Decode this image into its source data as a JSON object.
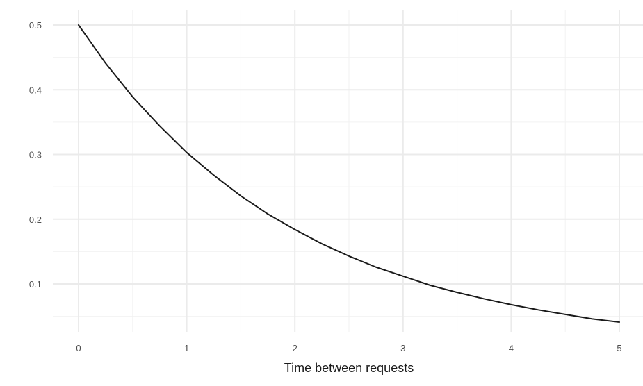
{
  "chart_data": {
    "type": "line",
    "xlabel": "Time between requests",
    "ylabel": "",
    "title": "",
    "xlim": [
      0,
      5
    ],
    "ylim": [
      0.04,
      0.5
    ],
    "x_ticks": [
      0,
      1,
      2,
      3,
      4,
      5
    ],
    "x_tick_labels": [
      "0",
      "1",
      "2",
      "3",
      "4",
      "5"
    ],
    "x_minor_ticks": [
      0.5,
      1.5,
      2.5,
      3.5,
      4.5
    ],
    "y_ticks": [
      0.1,
      0.2,
      0.3,
      0.4,
      0.5
    ],
    "y_tick_labels": [
      "0.1",
      "0.2",
      "0.3",
      "0.4",
      "0.5"
    ],
    "y_minor_ticks": [
      0.05,
      0.15,
      0.25,
      0.35,
      0.45
    ],
    "grid": true,
    "series": [
      {
        "color": "#1a1a1a",
        "x": [
          0,
          0.25,
          0.5,
          0.75,
          1,
          1.25,
          1.5,
          1.75,
          2,
          2.25,
          2.5,
          2.75,
          3,
          3.25,
          3.5,
          3.75,
          4,
          4.25,
          4.5,
          4.75,
          5
        ],
        "y": [
          0.5,
          0.441,
          0.389,
          0.344,
          0.303,
          0.268,
          0.236,
          0.208,
          0.184,
          0.162,
          0.143,
          0.126,
          0.112,
          0.098,
          0.087,
          0.077,
          0.068,
          0.06,
          0.053,
          0.046,
          0.041
        ]
      }
    ]
  }
}
